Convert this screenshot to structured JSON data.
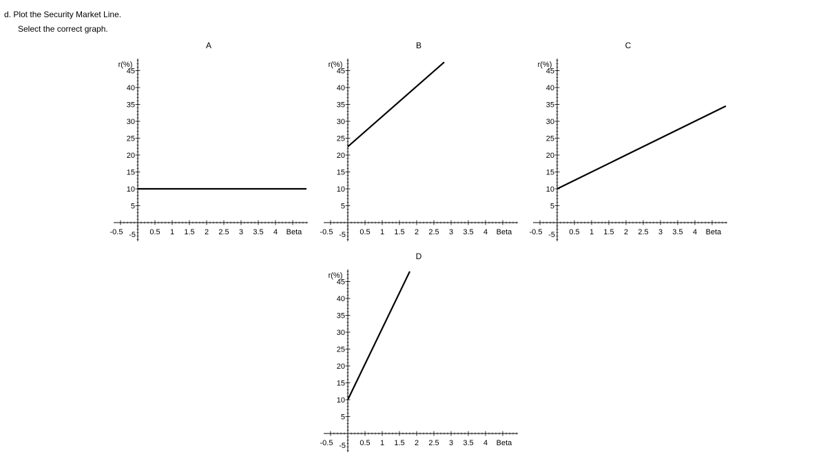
{
  "question": {
    "prompt": "d. Plot the Security Market Line.",
    "instruction": "Select the correct graph."
  },
  "chart_data": [
    {
      "type": "line",
      "title": "A",
      "xlabel": "Beta",
      "ylabel": "r(%)",
      "xlim": [
        -0.5,
        4.5
      ],
      "ylim": [
        -5,
        47
      ],
      "x_ticks": [
        "-0.5",
        "0.5",
        "1",
        "1.5",
        "2",
        "2.5",
        "3",
        "3.5",
        "4"
      ],
      "y_ticks": [
        "5",
        "10",
        "15",
        "20",
        "25",
        "30",
        "35",
        "40",
        "45"
      ],
      "y_min_label": "-5",
      "series": [
        {
          "x": [
            0,
            4.9
          ],
          "y": [
            10,
            10
          ]
        }
      ]
    },
    {
      "type": "line",
      "title": "B",
      "xlabel": "Beta",
      "ylabel": "r(%)",
      "xlim": [
        -0.5,
        4.5
      ],
      "ylim": [
        -5,
        47
      ],
      "x_ticks": [
        "-0.5",
        "0.5",
        "1",
        "1.5",
        "2",
        "2.5",
        "3",
        "3.5",
        "4"
      ],
      "y_ticks": [
        "5",
        "10",
        "15",
        "20",
        "25",
        "30",
        "35",
        "40",
        "45"
      ],
      "y_min_label": "-5",
      "series": [
        {
          "x": [
            0,
            2.8
          ],
          "y": [
            22.5,
            47.5
          ]
        }
      ]
    },
    {
      "type": "line",
      "title": "C",
      "xlabel": "Beta",
      "ylabel": "r(%)",
      "xlim": [
        -0.5,
        4.5
      ],
      "ylim": [
        -5,
        47
      ],
      "x_ticks": [
        "-0.5",
        "0.5",
        "1",
        "1.5",
        "2",
        "2.5",
        "3",
        "3.5",
        "4"
      ],
      "y_ticks": [
        "5",
        "10",
        "15",
        "20",
        "25",
        "30",
        "35",
        "40",
        "45"
      ],
      "y_min_label": "-5",
      "series": [
        {
          "x": [
            0,
            4.9
          ],
          "y": [
            10,
            34.5
          ]
        }
      ]
    },
    {
      "type": "line",
      "title": "D",
      "xlabel": "Beta",
      "ylabel": "r(%)",
      "xlim": [
        -0.5,
        4.5
      ],
      "ylim": [
        -5,
        47
      ],
      "x_ticks": [
        "-0.5",
        "0.5",
        "1",
        "1.5",
        "2",
        "2.5",
        "3",
        "3.5",
        "4"
      ],
      "y_ticks": [
        "5",
        "10",
        "15",
        "20",
        "25",
        "30",
        "35",
        "40",
        "45"
      ],
      "y_min_label": "-5",
      "series": [
        {
          "x": [
            0,
            1.8
          ],
          "y": [
            10,
            48
          ]
        }
      ]
    }
  ]
}
